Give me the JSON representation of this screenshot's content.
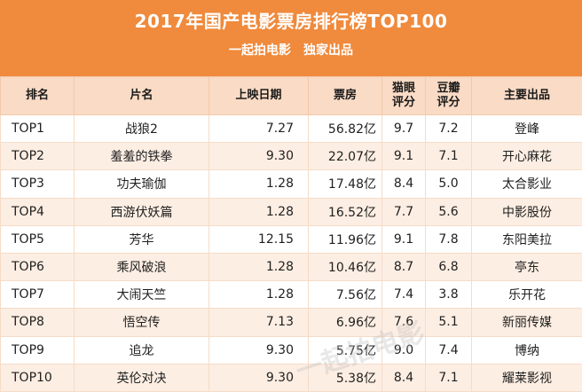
{
  "header": {
    "title": "2017年国产电影票房排行榜TOP100",
    "subtitle": "一起拍电影　独家出品"
  },
  "columns": {
    "rank": "排名",
    "name": "片名",
    "date": "上映日期",
    "box": "票房",
    "maoyan_l1": "猫眼",
    "maoyan_l2": "评分",
    "douban_l1": "豆瓣",
    "douban_l2": "评分",
    "distributor": "主要出品"
  },
  "rows": [
    {
      "rank": "TOP1",
      "name": "战狼2",
      "date": "7.27",
      "box": "56.82亿",
      "maoyan": "9.7",
      "douban": "7.2",
      "distributor": "登峰"
    },
    {
      "rank": "TOP2",
      "name": "羞羞的铁拳",
      "date": "9.30",
      "box": "22.07亿",
      "maoyan": "9.1",
      "douban": "7.1",
      "distributor": "开心麻花"
    },
    {
      "rank": "TOP3",
      "name": "功夫瑜伽",
      "date": "1.28",
      "box": "17.48亿",
      "maoyan": "8.4",
      "douban": "5.0",
      "distributor": "太合影业"
    },
    {
      "rank": "TOP4",
      "name": "西游伏妖篇",
      "date": "1.28",
      "box": "16.52亿",
      "maoyan": "7.7",
      "douban": "5.6",
      "distributor": "中影股份"
    },
    {
      "rank": "TOP5",
      "name": "芳华",
      "date": "12.15",
      "box": "11.96亿",
      "maoyan": "9.1",
      "douban": "7.8",
      "distributor": "东阳美拉"
    },
    {
      "rank": "TOP6",
      "name": "乘风破浪",
      "date": "1.28",
      "box": "10.46亿",
      "maoyan": "8.7",
      "douban": "6.8",
      "distributor": "亭东"
    },
    {
      "rank": "TOP7",
      "name": "大闹天竺",
      "date": "1.28",
      "box": "7.56亿",
      "maoyan": "7.4",
      "douban": "3.8",
      "distributor": "乐开花"
    },
    {
      "rank": "TOP8",
      "name": "悟空传",
      "date": "7.13",
      "box": "6.96亿",
      "maoyan": "7.6",
      "douban": "5.1",
      "distributor": "新丽传媒"
    },
    {
      "rank": "TOP9",
      "name": "追龙",
      "date": "9.30",
      "box": "5.75亿",
      "maoyan": "9.0",
      "douban": "7.4",
      "distributor": "博纳"
    },
    {
      "rank": "TOP10",
      "name": "英伦对决",
      "date": "9.30",
      "box": "5.38亿",
      "maoyan": "8.4",
      "douban": "7.1",
      "distributor": "耀莱影视"
    }
  ],
  "watermark": "一起拍电影",
  "colors": {
    "header_bg": "#f08a3c",
    "column_header_bg": "#fadbc5",
    "alt_row_bg": "#fdeee3"
  }
}
